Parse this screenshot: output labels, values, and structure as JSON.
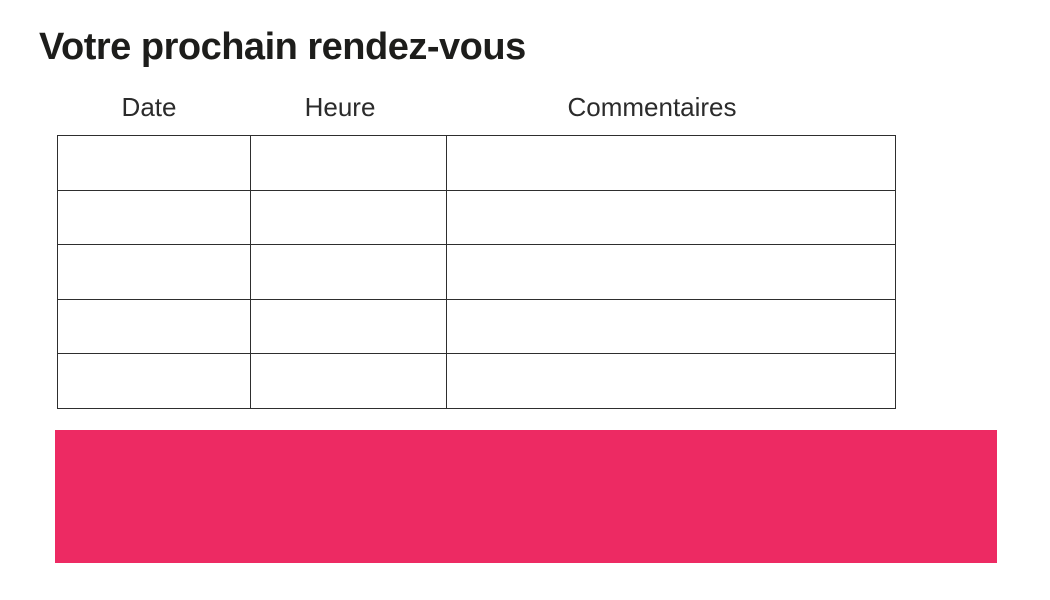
{
  "title": "Votre prochain rendez-vous",
  "table": {
    "headers": [
      "Date",
      "Heure",
      "Commentaires"
    ],
    "rows": [
      [
        "",
        "",
        ""
      ],
      [
        "",
        "",
        ""
      ],
      [
        "",
        "",
        ""
      ],
      [
        "",
        "",
        ""
      ],
      [
        "",
        "",
        ""
      ]
    ]
  },
  "banner": {
    "label": ""
  },
  "colors": {
    "banner": "#ED2A63",
    "text": "#1d1d1b",
    "table_border": "#2e2e2e"
  }
}
